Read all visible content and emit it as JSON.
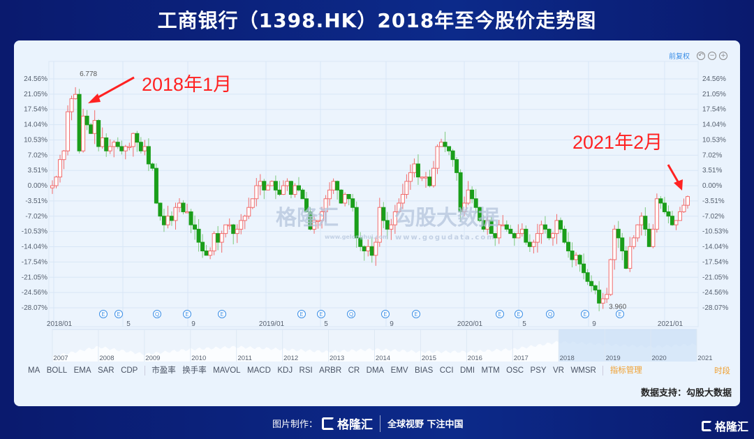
{
  "title": "工商银行（1398.HK）2018年至今股价走势图",
  "toolbar": {
    "adjust_label": "前复权",
    "icons": [
      "undo-icon",
      "zoom-out-icon",
      "zoom-in-icon"
    ]
  },
  "annotations": {
    "first": "2018年1月",
    "second": "2021年2月"
  },
  "watermarks": {
    "gelonghui": "格隆汇",
    "gelonghui_url": "www.gelonghui.com",
    "gogu": "勾股大数据",
    "gogu_url": "www.gogudata.com"
  },
  "chart_data": {
    "type": "candlestick",
    "y_axis_labels": [
      "24.56%",
      "21.05%",
      "17.54%",
      "14.04%",
      "10.53%",
      "7.02%",
      "3.51%",
      "0.00%",
      "-3.51%",
      "-7.02%",
      "-10.53%",
      "-14.04%",
      "-17.54%",
      "-21.05%",
      "-24.56%",
      "-28.07%"
    ],
    "ylim": [
      -28.07,
      24.56
    ],
    "x_ticks": [
      "2018/01",
      "5",
      "9",
      "2019/01",
      "5",
      "9",
      "2020/01",
      "5",
      "9",
      "2021/01"
    ],
    "max_label": "6.778",
    "min_label": "3.960",
    "closes_pct": [
      0,
      2,
      6,
      8,
      17,
      20,
      21,
      8,
      16,
      14,
      12,
      15,
      9,
      11,
      8,
      9,
      10,
      9,
      8,
      9,
      9,
      12,
      10,
      8,
      9,
      5,
      4,
      -4,
      -7,
      -9,
      -7,
      -8,
      -5,
      -4,
      -6,
      -6,
      -9,
      -10,
      -13,
      -15,
      -16,
      -15,
      -11,
      -13,
      -11,
      -9,
      -9,
      -11,
      -10,
      -8,
      -7,
      -5,
      -3,
      0,
      1,
      -1,
      0,
      1,
      -1,
      -2,
      0,
      1,
      -2,
      0,
      -1,
      -3,
      -6,
      -10,
      -8,
      -8,
      -6,
      -3,
      -1,
      1,
      -1,
      -4,
      -2,
      -3,
      -5,
      -12,
      -14,
      -15,
      -14,
      -16,
      -13,
      -5,
      -8,
      -10,
      -9,
      -6,
      -4,
      -2,
      1,
      3,
      5,
      2,
      2,
      2,
      0,
      4,
      9,
      10,
      9,
      8,
      6,
      3,
      -6,
      -4,
      -1,
      -3,
      -5,
      -8,
      -10,
      -8,
      -11,
      -12,
      -9,
      -9,
      -10,
      -11,
      -12,
      -11,
      -10,
      -13,
      -14,
      -13,
      -11,
      -9,
      -10,
      -12,
      -11,
      -8,
      -10,
      -13,
      -15,
      -17,
      -16,
      -18,
      -20,
      -22,
      -23,
      -24,
      -27,
      -26,
      -25,
      -17,
      -10,
      -12,
      -15,
      -19,
      -14,
      -12,
      -9,
      -7,
      -10,
      -14,
      -10,
      -3,
      -4,
      -6,
      -7,
      -9,
      -8,
      -6,
      -4.5,
      -2.5
    ],
    "events": [
      "E",
      "E",
      "Q",
      "E",
      "E",
      "E",
      "E",
      "Q",
      "E",
      "E",
      "E",
      "E",
      "Q",
      "E",
      "E"
    ],
    "navigator": {
      "years": [
        "2007",
        "2008",
        "2009",
        "2010",
        "2011",
        "2012",
        "2013",
        "2014",
        "2015",
        "2016",
        "2017",
        "2018",
        "2019",
        "2020",
        "2021"
      ],
      "values": [
        2,
        6,
        3,
        5,
        6,
        5,
        4,
        5,
        4,
        4,
        5,
        8,
        7,
        6,
        7
      ]
    },
    "colors": {
      "up": "#f26b6b",
      "down": "#1a9e1a",
      "grid": "#d8e6f6",
      "nav_sel": "#c9def6"
    }
  },
  "indicators": [
    "MA",
    "BOLL",
    "EMA",
    "SAR",
    "CDP",
    "市盈率",
    "换手率",
    "MAVOL",
    "MACD",
    "KDJ",
    "RSI",
    "ARBR",
    "CR",
    "DMA",
    "EMV",
    "BIAS",
    "CCI",
    "DMI",
    "MTM",
    "OSC",
    "PSY",
    "VR",
    "WMSR"
  ],
  "indicator_manage": "指标管理",
  "period": "时段",
  "source": "数据支持：勾股大数据",
  "footer": {
    "made_by": "图片制作：",
    "brand": "格隆汇",
    "slogan": "全球视野 下注中国"
  }
}
